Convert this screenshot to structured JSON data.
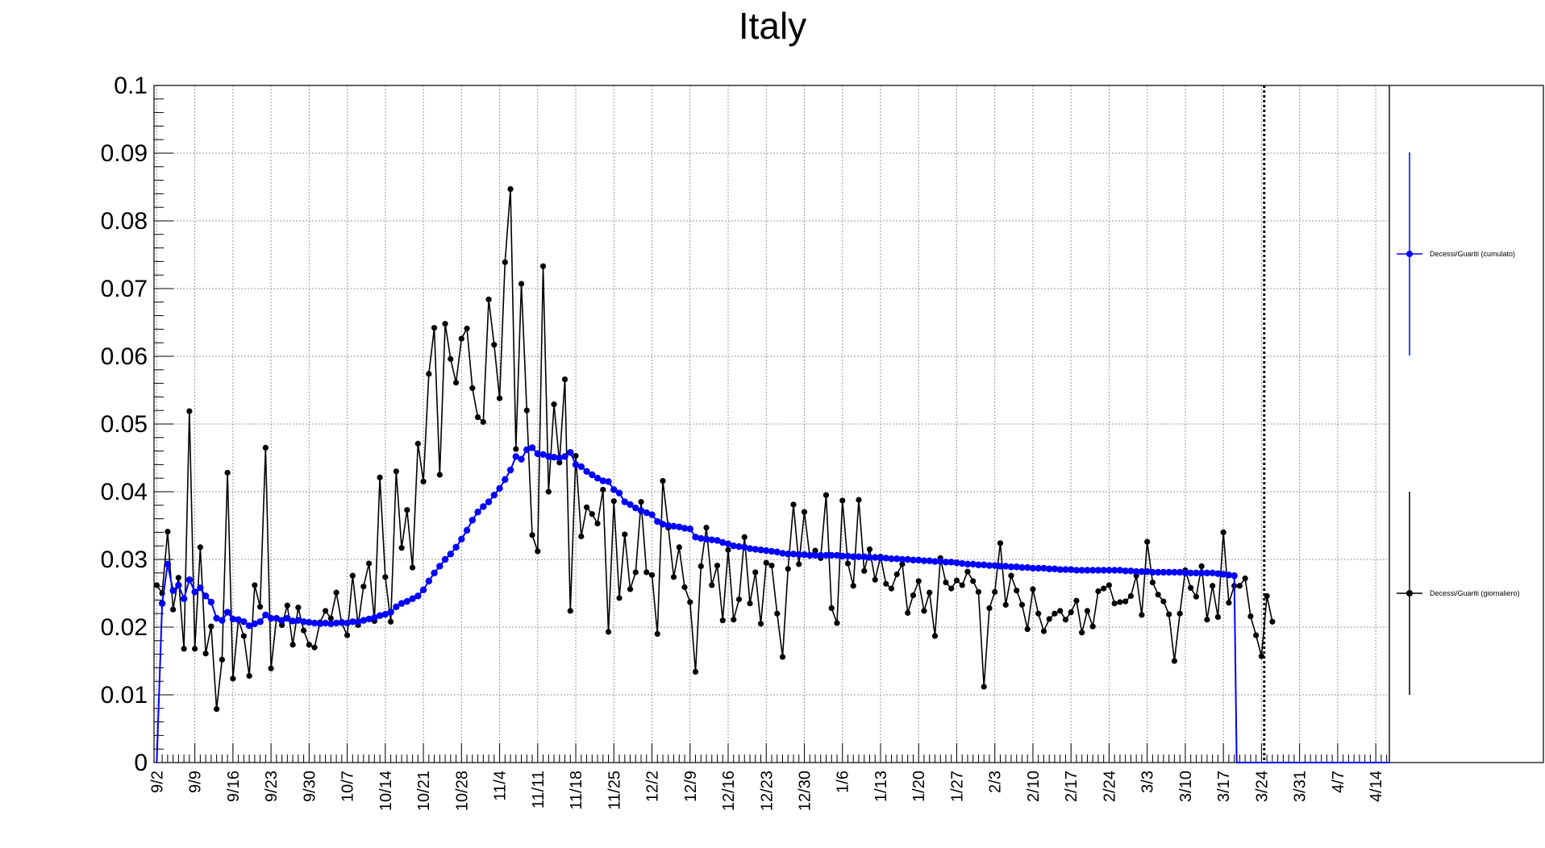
{
  "chart_data": {
    "type": "line",
    "title": "Italy",
    "xlabel": "",
    "ylabel": "",
    "ylim": [
      0,
      0.1
    ],
    "y_ticks": [
      "0",
      "0.01",
      "0.02",
      "0.03",
      "0.04",
      "0.05",
      "0.06",
      "0.07",
      "0.08",
      "0.09",
      "0.1"
    ],
    "x_ticks": [
      {
        "label": "9/2",
        "day": 0
      },
      {
        "label": "9/9",
        "day": 7
      },
      {
        "label": "9/16",
        "day": 14
      },
      {
        "label": "9/23",
        "day": 21
      },
      {
        "label": "9/30",
        "day": 28
      },
      {
        "label": "10/7",
        "day": 35
      },
      {
        "label": "10/14",
        "day": 42
      },
      {
        "label": "10/21",
        "day": 49
      },
      {
        "label": "10/28",
        "day": 56
      },
      {
        "label": "11/4",
        "day": 63
      },
      {
        "label": "11/11",
        "day": 70
      },
      {
        "label": "11/18",
        "day": 77
      },
      {
        "label": "11/25",
        "day": 84
      },
      {
        "label": "12/2",
        "day": 91
      },
      {
        "label": "12/9",
        "day": 98
      },
      {
        "label": "12/16",
        "day": 105
      },
      {
        "label": "12/23",
        "day": 112
      },
      {
        "label": "12/30",
        "day": 119
      },
      {
        "label": "1/6",
        "day": 126
      },
      {
        "label": "1/13",
        "day": 133
      },
      {
        "label": "1/20",
        "day": 140
      },
      {
        "label": "1/27",
        "day": 147
      },
      {
        "label": "2/3",
        "day": 154
      },
      {
        "label": "2/10",
        "day": 161
      },
      {
        "label": "2/17",
        "day": 168
      },
      {
        "label": "2/24",
        "day": 175
      },
      {
        "label": "3/3",
        "day": 182
      },
      {
        "label": "3/10",
        "day": 189
      },
      {
        "label": "3/17",
        "day": 196
      },
      {
        "label": "3/24",
        "day": 203
      },
      {
        "label": "3/31",
        "day": 210
      },
      {
        "label": "4/7",
        "day": 217
      },
      {
        "label": "4/14",
        "day": 224
      }
    ],
    "x_range_days": [
      -0.5,
      226.5
    ],
    "vertical_marker_day": 203.5,
    "grid": true,
    "legend_position": "right",
    "series": [
      {
        "name": "Decessi/Guariti (cumulato)",
        "color": "#0000ff",
        "x_start_day": 0,
        "drop_to_zero_after": true,
        "values": [
          0.0,
          0.0235,
          0.0293,
          0.0254,
          0.0262,
          0.0242,
          0.027,
          0.0252,
          0.0258,
          0.0246,
          0.0237,
          0.0213,
          0.021,
          0.0222,
          0.0212,
          0.0211,
          0.0208,
          0.0202,
          0.0205,
          0.0208,
          0.0218,
          0.0213,
          0.0213,
          0.021,
          0.0213,
          0.0209,
          0.021,
          0.0208,
          0.0207,
          0.0206,
          0.0205,
          0.0206,
          0.0205,
          0.0206,
          0.0207,
          0.0206,
          0.0208,
          0.0208,
          0.021,
          0.0212,
          0.0214,
          0.0217,
          0.0219,
          0.0222,
          0.023,
          0.0235,
          0.0238,
          0.0242,
          0.0246,
          0.0255,
          0.0268,
          0.028,
          0.029,
          0.03,
          0.0308,
          0.0318,
          0.033,
          0.0343,
          0.0358,
          0.037,
          0.0378,
          0.0385,
          0.0395,
          0.0405,
          0.0418,
          0.0432,
          0.0452,
          0.0448,
          0.0462,
          0.0465,
          0.0456,
          0.0455,
          0.0452,
          0.0451,
          0.045,
          0.0452,
          0.0458,
          0.044,
          0.0437,
          0.043,
          0.0425,
          0.042,
          0.0416,
          0.0415,
          0.0403,
          0.0398,
          0.0385,
          0.0381,
          0.0376,
          0.0372,
          0.0369,
          0.0366,
          0.0356,
          0.0352,
          0.035,
          0.0349,
          0.0348,
          0.0346,
          0.0345,
          0.0333,
          0.0331,
          0.033,
          0.0329,
          0.0328,
          0.0325,
          0.0323,
          0.032,
          0.0319,
          0.0318,
          0.0316,
          0.0315,
          0.0314,
          0.0313,
          0.0312,
          0.0311,
          0.0309,
          0.0308,
          0.0308,
          0.0307,
          0.0307,
          0.0306,
          0.0306,
          0.0306,
          0.0306,
          0.0306,
          0.0306,
          0.0305,
          0.0305,
          0.0304,
          0.0304,
          0.0304,
          0.0303,
          0.0303,
          0.0302,
          0.0302,
          0.0301,
          0.0301,
          0.03,
          0.03,
          0.0299,
          0.0299,
          0.0298,
          0.0298,
          0.0297,
          0.0297,
          0.0296,
          0.0296,
          0.0295,
          0.0294,
          0.0293,
          0.0293,
          0.0292,
          0.0292,
          0.0291,
          0.0291,
          0.029,
          0.029,
          0.0289,
          0.0289,
          0.0288,
          0.0288,
          0.0287,
          0.0287,
          0.0287,
          0.0286,
          0.0286,
          0.0285,
          0.0285,
          0.0285,
          0.0284,
          0.0284,
          0.0284,
          0.0284,
          0.0284,
          0.0284,
          0.0284,
          0.0284,
          0.0284,
          0.0283,
          0.0283,
          0.0282,
          0.0282,
          0.0282,
          0.0281,
          0.0281,
          0.0281,
          0.0281,
          0.0281,
          0.0281,
          0.028,
          0.028,
          0.028,
          0.028,
          0.028,
          0.028,
          0.0279,
          0.0278,
          0.0277,
          0.0276
        ]
      },
      {
        "name": "Decessi/Guariti (giornaliero)",
        "color": "#000000",
        "x_start_day": 0,
        "drop_to_zero_after": false,
        "values": [
          0.0262,
          0.025,
          0.0341,
          0.0226,
          0.0273,
          0.0168,
          0.0519,
          0.0168,
          0.0318,
          0.0161,
          0.0201,
          0.0079,
          0.0152,
          0.0428,
          0.0124,
          0.0211,
          0.0187,
          0.0128,
          0.0262,
          0.023,
          0.0465,
          0.0139,
          0.0213,
          0.0203,
          0.0232,
          0.0174,
          0.0229,
          0.0195,
          0.0174,
          0.017,
          0.0207,
          0.0224,
          0.0213,
          0.0251,
          0.0206,
          0.0188,
          0.0276,
          0.0203,
          0.026,
          0.0294,
          0.0209,
          0.0421,
          0.0274,
          0.0208,
          0.043,
          0.0317,
          0.0373,
          0.0288,
          0.0471,
          0.0415,
          0.0574,
          0.0642,
          0.0425,
          0.0648,
          0.0596,
          0.0561,
          0.0626,
          0.0641,
          0.0553,
          0.051,
          0.0503,
          0.0684,
          0.0617,
          0.0538,
          0.0739,
          0.0847,
          0.0463,
          0.0707,
          0.052,
          0.0336,
          0.0312,
          0.0733,
          0.04,
          0.0529,
          0.0443,
          0.0566,
          0.0224,
          0.0453,
          0.0334,
          0.0377,
          0.0367,
          0.0353,
          0.0403,
          0.0193,
          0.0386,
          0.0243,
          0.0337,
          0.0256,
          0.0281,
          0.0385,
          0.0281,
          0.0277,
          0.019,
          0.0416,
          0.0347,
          0.0274,
          0.0318,
          0.0259,
          0.0237,
          0.0134,
          0.029,
          0.0347,
          0.0262,
          0.0291,
          0.021,
          0.0314,
          0.0211,
          0.0241,
          0.0333,
          0.0235,
          0.0281,
          0.0205,
          0.0295,
          0.0291,
          0.022,
          0.0156,
          0.0286,
          0.0381,
          0.0293,
          0.037,
          0.0305,
          0.0313,
          0.0302,
          0.0395,
          0.0228,
          0.0206,
          0.0387,
          0.0294,
          0.0261,
          0.0388,
          0.0283,
          0.0315,
          0.027,
          0.0304,
          0.0264,
          0.0257,
          0.0278,
          0.0293,
          0.0221,
          0.0247,
          0.0268,
          0.0224,
          0.0251,
          0.0187,
          0.0302,
          0.0266,
          0.0257,
          0.0269,
          0.0262,
          0.0282,
          0.0268,
          0.0252,
          0.0112,
          0.0228,
          0.0252,
          0.0324,
          0.0233,
          0.0276,
          0.0254,
          0.0233,
          0.0197,
          0.0256,
          0.022,
          0.0194,
          0.0212,
          0.022,
          0.0224,
          0.0211,
          0.0222,
          0.0239,
          0.0192,
          0.0224,
          0.0201,
          0.0253,
          0.0257,
          0.0262,
          0.0235,
          0.0237,
          0.0238,
          0.0246,
          0.0276,
          0.0218,
          0.0326,
          0.0266,
          0.0248,
          0.0238,
          0.0219,
          0.015,
          0.022,
          0.0284,
          0.0258,
          0.0245,
          0.029,
          0.0211,
          0.0261,
          0.0215,
          0.034,
          0.0236,
          0.0261,
          0.0261,
          0.0272,
          0.0216,
          0.0188,
          0.0157,
          0.0246,
          0.0208
        ]
      }
    ]
  },
  "colors": {
    "cumulative": "#0000ff",
    "daily": "#000000",
    "grid": "#9a9a9a",
    "axis": "#000000"
  }
}
